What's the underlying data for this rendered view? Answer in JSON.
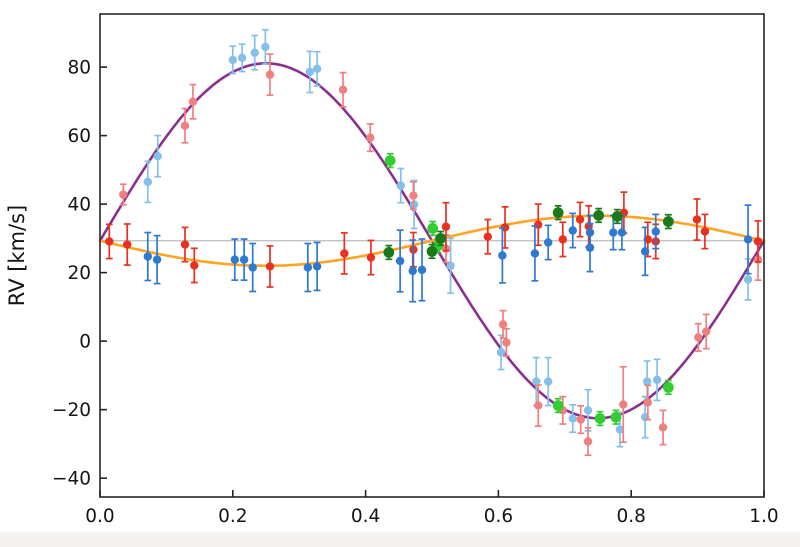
{
  "figure": {
    "background": "#ffffff",
    "footer_strip_color": "#f4f3f1"
  },
  "chart_data": {
    "type": "scatter",
    "title": "",
    "xlabel": "",
    "ylabel": "RV [km/s]",
    "xlim": [
      0.0,
      1.0
    ],
    "ylim": [
      -45.5,
      95.5
    ],
    "xticks": [
      0.0,
      0.2,
      0.4,
      0.6,
      0.8,
      1.0
    ],
    "yticks": [
      -40,
      -20,
      0,
      20,
      40,
      60,
      80
    ],
    "grid": false,
    "legend_position": "none",
    "axis_color": "#262626",
    "tick_direction": "in",
    "systemic_velocity_line": {
      "value": 29.3,
      "color": "#bbbbbb"
    },
    "model_curves": [
      {
        "name": "primary-rv-model-curve",
        "color": "#8b2f8f",
        "gamma": 29.3,
        "semi_amplitude": 51.8,
        "sign": 1,
        "width": 2.6
      },
      {
        "name": "secondary-rv-model-curve",
        "color": "#ffa423",
        "gamma": 29.3,
        "semi_amplitude": 7.3,
        "sign": -1,
        "width": 2.6
      }
    ],
    "series": [
      {
        "name": "lightblue-rv-points",
        "color": "#85c0ea",
        "marker_radius": 4.2,
        "points": [
          [
            0.072,
            46.5,
            6
          ],
          [
            0.087,
            54.0,
            6
          ],
          [
            0.2,
            82.1,
            4
          ],
          [
            0.214,
            82.7,
            4
          ],
          [
            0.233,
            84.2,
            5
          ],
          [
            0.249,
            85.9,
            5
          ],
          [
            0.316,
            78.6,
            6
          ],
          [
            0.327,
            79.5,
            5
          ],
          [
            0.453,
            45.4,
            5
          ],
          [
            0.473,
            39.9,
            7
          ],
          [
            0.528,
            22.0,
            8
          ],
          [
            0.604,
            -3.3,
            5
          ],
          [
            0.657,
            -11.8,
            7
          ],
          [
            0.675,
            -11.8,
            7
          ],
          [
            0.712,
            -22.6,
            4
          ],
          [
            0.735,
            -20.2,
            6
          ],
          [
            0.783,
            -25.8,
            5
          ],
          [
            0.821,
            -22.2,
            6
          ],
          [
            0.824,
            -11.8,
            6
          ],
          [
            0.839,
            -11.3,
            6
          ],
          [
            0.976,
            18.0,
            6
          ]
        ]
      },
      {
        "name": "lightcoral-rv-points",
        "color": "#f08080",
        "marker_radius": 4.2,
        "points": [
          [
            0.035,
            42.8,
            3
          ],
          [
            0.128,
            62.9,
            5
          ],
          [
            0.14,
            69.9,
            5
          ],
          [
            0.256,
            77.8,
            6
          ],
          [
            0.366,
            73.4,
            5
          ],
          [
            0.407,
            59.4,
            4
          ],
          [
            0.472,
            42.5,
            4
          ],
          [
            0.521,
            27.0,
            4
          ],
          [
            0.607,
            4.9,
            4
          ],
          [
            0.612,
            -0.4,
            4
          ],
          [
            0.66,
            -18.8,
            6
          ],
          [
            0.697,
            -20.2,
            4
          ],
          [
            0.724,
            -22.9,
            4
          ],
          [
            0.735,
            -29.3,
            4
          ],
          [
            0.788,
            -18.5,
            11
          ],
          [
            0.825,
            -17.9,
            5
          ],
          [
            0.848,
            -25.2,
            5
          ],
          [
            0.901,
            1.1,
            4
          ],
          [
            0.913,
            2.8,
            5
          ],
          [
            0.991,
            23.8,
            6
          ]
        ]
      },
      {
        "name": "red-rv-points",
        "color": "#e8311f",
        "marker_radius": 4.2,
        "points": [
          [
            0.014,
            29.1,
            5
          ],
          [
            0.041,
            28.2,
            6
          ],
          [
            0.128,
            28.2,
            5
          ],
          [
            0.142,
            22.1,
            5
          ],
          [
            0.256,
            21.8,
            6
          ],
          [
            0.368,
            25.6,
            6
          ],
          [
            0.408,
            24.4,
            5
          ],
          [
            0.472,
            26.7,
            5
          ],
          [
            0.521,
            33.4,
            7
          ],
          [
            0.584,
            30.5,
            5
          ],
          [
            0.61,
            33.2,
            6
          ],
          [
            0.66,
            34.0,
            6
          ],
          [
            0.697,
            29.7,
            5
          ],
          [
            0.723,
            35.5,
            5
          ],
          [
            0.736,
            33.5,
            6
          ],
          [
            0.789,
            37.5,
            6
          ],
          [
            0.825,
            29.7,
            5
          ],
          [
            0.837,
            29.1,
            5
          ],
          [
            0.899,
            35.5,
            6
          ],
          [
            0.911,
            32.0,
            5
          ],
          [
            0.991,
            29.1,
            6
          ]
        ]
      },
      {
        "name": "blue-rv-points",
        "color": "#2f79d0",
        "marker_radius": 4.2,
        "points": [
          [
            0.072,
            24.7,
            7
          ],
          [
            0.086,
            23.8,
            7
          ],
          [
            0.203,
            23.8,
            6
          ],
          [
            0.217,
            23.8,
            6
          ],
          [
            0.23,
            21.5,
            7
          ],
          [
            0.313,
            21.5,
            7
          ],
          [
            0.327,
            21.8,
            7
          ],
          [
            0.452,
            23.4,
            9
          ],
          [
            0.471,
            20.5,
            9
          ],
          [
            0.485,
            20.8,
            9
          ],
          [
            0.606,
            25.0,
            8
          ],
          [
            0.655,
            25.6,
            8
          ],
          [
            0.675,
            28.8,
            5
          ],
          [
            0.712,
            32.3,
            5
          ],
          [
            0.738,
            31.7,
            5
          ],
          [
            0.738,
            27.3,
            7
          ],
          [
            0.773,
            31.7,
            5
          ],
          [
            0.786,
            31.7,
            5
          ],
          [
            0.821,
            26.2,
            7
          ],
          [
            0.837,
            32.0,
            5
          ],
          [
            0.976,
            29.7,
            10
          ]
        ]
      },
      {
        "name": "limegreen-rv-points",
        "color": "#32cd32",
        "marker_radius": 5.4,
        "points": [
          [
            0.437,
            52.7,
            2
          ],
          [
            0.501,
            32.9,
            2
          ],
          [
            0.509,
            27.9,
            2
          ],
          [
            0.69,
            -18.8,
            2
          ],
          [
            0.753,
            -22.6,
            2
          ],
          [
            0.777,
            -22.2,
            2
          ],
          [
            0.856,
            -13.5,
            2
          ]
        ]
      },
      {
        "name": "darkgreen-rv-points",
        "color": "#1a7a1a",
        "marker_radius": 5.4,
        "points": [
          [
            0.435,
            25.9,
            2
          ],
          [
            0.5,
            26.2,
            2
          ],
          [
            0.513,
            30.0,
            2
          ],
          [
            0.69,
            37.5,
            2
          ],
          [
            0.751,
            36.7,
            2
          ],
          [
            0.779,
            36.4,
            2
          ],
          [
            0.856,
            34.9,
            2
          ]
        ]
      }
    ]
  }
}
